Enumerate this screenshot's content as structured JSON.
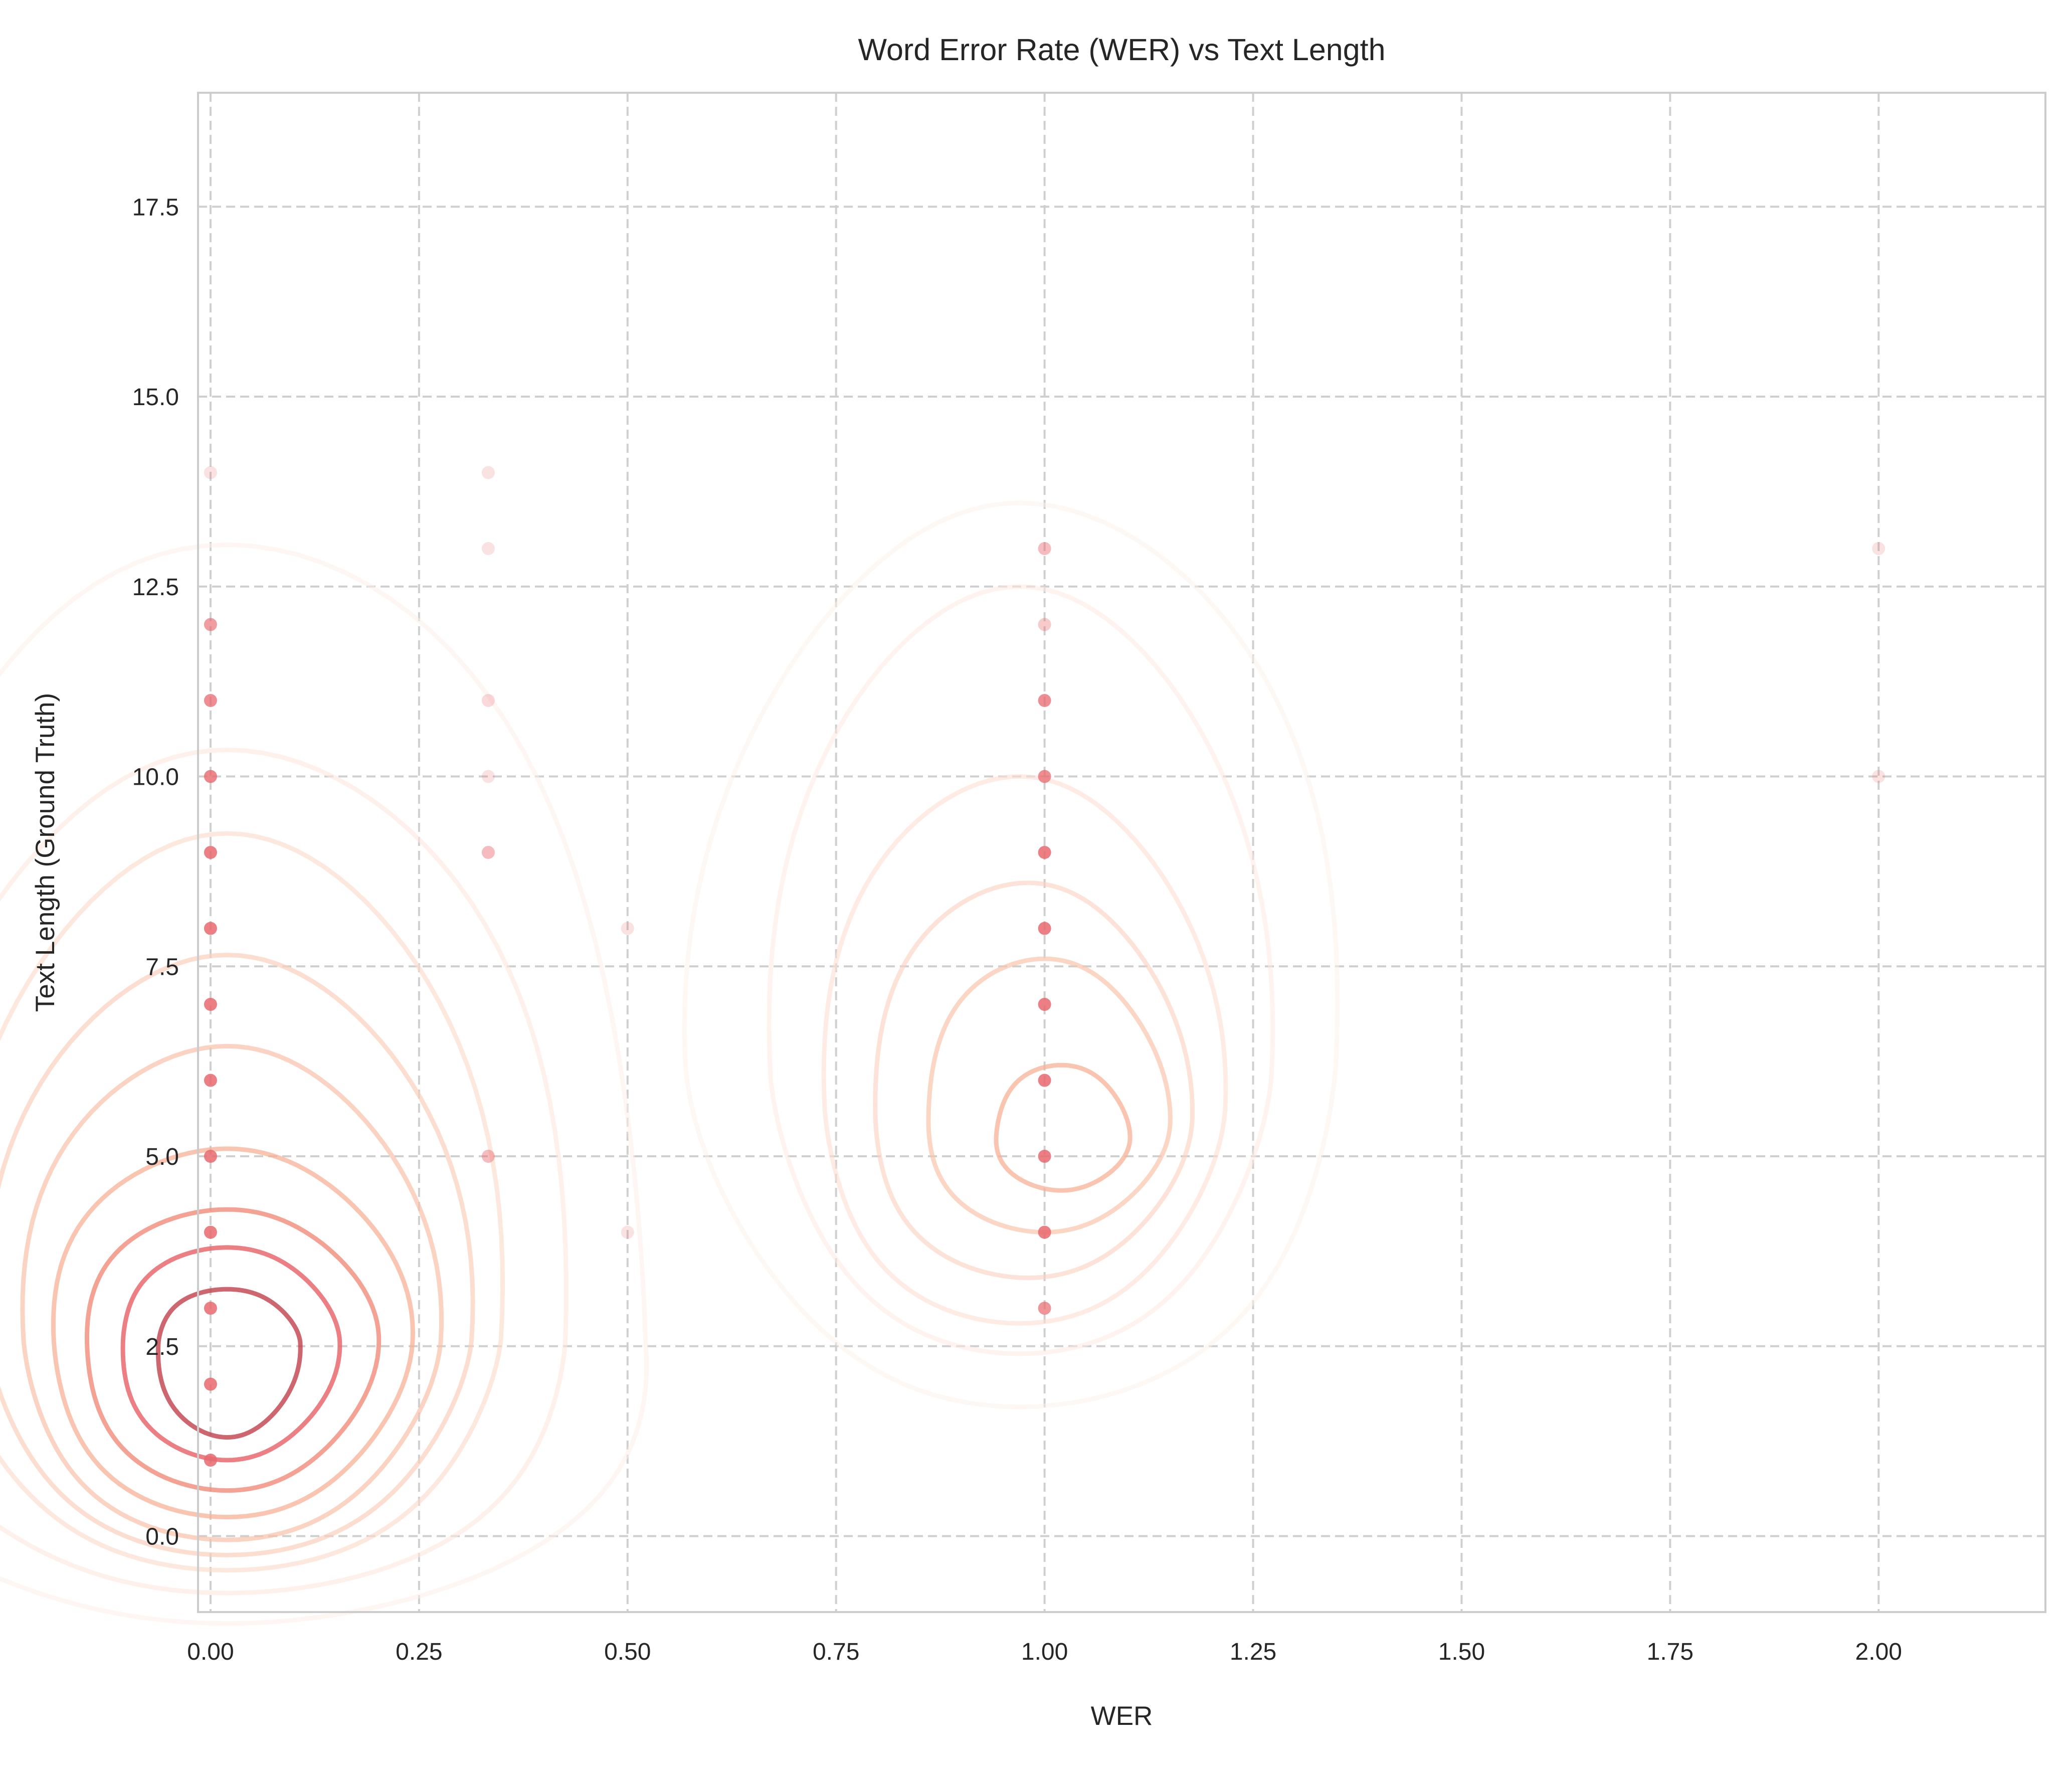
{
  "chart_data": {
    "type": "scatter",
    "title": "Word Error Rate (WER) vs Text Length",
    "xlabel": "WER",
    "ylabel": "Text Length (Ground Truth)",
    "xlim": [
      -0.015,
      2.2
    ],
    "ylim": [
      -1.0,
      19.0
    ],
    "x_ticks": [
      0.0,
      0.25,
      0.5,
      0.75,
      1.0,
      1.25,
      1.5,
      1.75,
      2.0
    ],
    "x_tick_labels": [
      "0.00",
      "0.25",
      "0.50",
      "0.75",
      "1.00",
      "1.25",
      "1.50",
      "1.75",
      "2.00"
    ],
    "y_ticks": [
      0.0,
      2.5,
      5.0,
      7.5,
      10.0,
      12.5,
      15.0,
      17.5
    ],
    "y_tick_labels": [
      "0.0",
      "2.5",
      "5.0",
      "7.5",
      "10.0",
      "12.5",
      "15.0",
      "17.5"
    ],
    "grid": true,
    "point_color": "#e8686e",
    "points": [
      {
        "x": 0.0,
        "y": 1,
        "alpha": 0.85
      },
      {
        "x": 0.0,
        "y": 2,
        "alpha": 0.85
      },
      {
        "x": 0.0,
        "y": 3,
        "alpha": 0.85
      },
      {
        "x": 0.0,
        "y": 4,
        "alpha": 0.85
      },
      {
        "x": 0.0,
        "y": 5,
        "alpha": 0.85
      },
      {
        "x": 0.0,
        "y": 6,
        "alpha": 0.85
      },
      {
        "x": 0.0,
        "y": 7,
        "alpha": 0.85
      },
      {
        "x": 0.0,
        "y": 8,
        "alpha": 0.85
      },
      {
        "x": 0.0,
        "y": 9,
        "alpha": 0.85
      },
      {
        "x": 0.0,
        "y": 10,
        "alpha": 0.8
      },
      {
        "x": 0.0,
        "y": 11,
        "alpha": 0.75
      },
      {
        "x": 0.0,
        "y": 12,
        "alpha": 0.65
      },
      {
        "x": 0.0,
        "y": 14,
        "alpha": 0.2
      },
      {
        "x": 0.333,
        "y": 5,
        "alpha": 0.45
      },
      {
        "x": 0.333,
        "y": 9,
        "alpha": 0.45
      },
      {
        "x": 0.333,
        "y": 10,
        "alpha": 0.2
      },
      {
        "x": 0.333,
        "y": 11,
        "alpha": 0.25
      },
      {
        "x": 0.333,
        "y": 13,
        "alpha": 0.2
      },
      {
        "x": 0.333,
        "y": 14,
        "alpha": 0.2
      },
      {
        "x": 0.5,
        "y": 4,
        "alpha": 0.2
      },
      {
        "x": 0.5,
        "y": 8,
        "alpha": 0.2
      },
      {
        "x": 1.0,
        "y": 3,
        "alpha": 0.7
      },
      {
        "x": 1.0,
        "y": 4,
        "alpha": 0.85
      },
      {
        "x": 1.0,
        "y": 5,
        "alpha": 0.85
      },
      {
        "x": 1.0,
        "y": 6,
        "alpha": 0.85
      },
      {
        "x": 1.0,
        "y": 7,
        "alpha": 0.85
      },
      {
        "x": 1.0,
        "y": 8,
        "alpha": 0.85
      },
      {
        "x": 1.0,
        "y": 9,
        "alpha": 0.85
      },
      {
        "x": 1.0,
        "y": 10,
        "alpha": 0.75
      },
      {
        "x": 1.0,
        "y": 11,
        "alpha": 0.75
      },
      {
        "x": 1.0,
        "y": 12,
        "alpha": 0.35
      },
      {
        "x": 1.0,
        "y": 13,
        "alpha": 0.45
      },
      {
        "x": 2.0,
        "y": 10,
        "alpha": 0.2
      },
      {
        "x": 2.0,
        "y": 13,
        "alpha": 0.2
      }
    ],
    "kde_contours": [
      {
        "cluster": "wer-0",
        "center": [
          0.02,
          2.55
        ],
        "rx": 0.085,
        "ry_up": 0.7,
        "ry_down": 1.25,
        "color": "#c0404a",
        "alpha": 0.8
      },
      {
        "cluster": "wer-0",
        "center": [
          0.02,
          2.55
        ],
        "rx": 0.13,
        "ry_up": 1.25,
        "ry_down": 1.55,
        "color": "#e8686e",
        "alpha": 0.85
      },
      {
        "cluster": "wer-0",
        "center": [
          0.02,
          2.55
        ],
        "rx": 0.175,
        "ry_up": 1.75,
        "ry_down": 1.95,
        "color": "#f08b78",
        "alpha": 0.8
      },
      {
        "cluster": "wer-0",
        "center": [
          0.02,
          2.55
        ],
        "rx": 0.215,
        "ry_up": 2.55,
        "ry_down": 2.3,
        "color": "#f7b095",
        "alpha": 0.75
      },
      {
        "cluster": "wer-0",
        "center": [
          0.02,
          2.55
        ],
        "rx": 0.25,
        "ry_up": 3.9,
        "ry_down": 2.6,
        "color": "#f9c1a8",
        "alpha": 0.7
      },
      {
        "cluster": "wer-0",
        "center": [
          0.02,
          2.55
        ],
        "rx": 0.29,
        "ry_up": 5.1,
        "ry_down": 2.8,
        "color": "#fbd0bc",
        "alpha": 0.7
      },
      {
        "cluster": "wer-0",
        "center": [
          0.02,
          2.55
        ],
        "rx": 0.33,
        "ry_up": 6.7,
        "ry_down": 3.0,
        "color": "#fcdccd",
        "alpha": 0.65
      },
      {
        "cluster": "wer-0",
        "center": [
          0.02,
          2.55
        ],
        "rx": 0.42,
        "ry_up": 7.8,
        "ry_down": 3.3,
        "color": "#fde6dc",
        "alpha": 0.6
      },
      {
        "cluster": "wer-0",
        "center": [
          0.02,
          2.55
        ],
        "rx": 0.52,
        "ry_up": 10.5,
        "ry_down": 3.7,
        "color": "#fdeee7",
        "alpha": 0.55
      },
      {
        "cluster": "wer-1",
        "center": [
          1.02,
          5.3
        ],
        "rx": 0.08,
        "ry_up": 0.9,
        "ry_down": 0.75,
        "color": "#f7b095",
        "alpha": 0.75
      },
      {
        "cluster": "wer-1",
        "center": [
          1.0,
          5.5
        ],
        "rx": 0.145,
        "ry_up": 2.1,
        "ry_down": 1.5,
        "color": "#fac4ad",
        "alpha": 0.7
      },
      {
        "cluster": "wer-1",
        "center": [
          0.98,
          5.5
        ],
        "rx": 0.19,
        "ry_up": 3.1,
        "ry_down": 2.1,
        "color": "#fcd3c1",
        "alpha": 0.65
      },
      {
        "cluster": "wer-1",
        "center": [
          0.97,
          5.6
        ],
        "rx": 0.24,
        "ry_up": 4.4,
        "ry_down": 2.8,
        "color": "#fde0d2",
        "alpha": 0.6
      },
      {
        "cluster": "wer-1",
        "center": [
          0.97,
          6.0
        ],
        "rx": 0.3,
        "ry_up": 6.5,
        "ry_down": 3.6,
        "color": "#fde9e0",
        "alpha": 0.55
      },
      {
        "cluster": "wer-1",
        "center": [
          0.97,
          6.2
        ],
        "rx": 0.39,
        "ry_up": 7.4,
        "ry_down": 4.5,
        "color": "#fef1eb",
        "alpha": 0.5
      }
    ]
  }
}
